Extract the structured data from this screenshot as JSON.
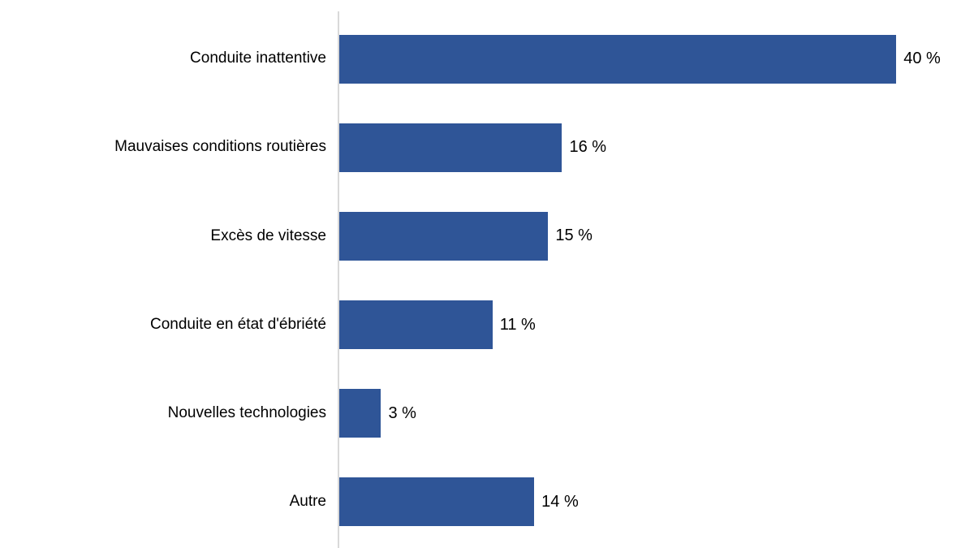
{
  "chart_data": {
    "type": "bar",
    "orientation": "horizontal",
    "title": "",
    "xlabel": "",
    "ylabel": "",
    "categories": [
      "Conduite inattentive",
      "Mauvaises conditions routières",
      "Excès de vitesse",
      "Conduite en état d'ébriété",
      "Nouvelles technologies",
      "Autre"
    ],
    "values": [
      40,
      16,
      15,
      11,
      3,
      14
    ],
    "value_labels": [
      "40 %",
      "16 %",
      "15 %",
      "11 %",
      "3 %",
      "14 %"
    ],
    "value_unit": "%",
    "xlim": [
      0,
      45
    ],
    "grid": false,
    "legend": false,
    "bar_color": "#2F5597",
    "axis_line_color": "#D9D9D9",
    "text_color": "#000000",
    "background_color": "#FFFFFF"
  }
}
